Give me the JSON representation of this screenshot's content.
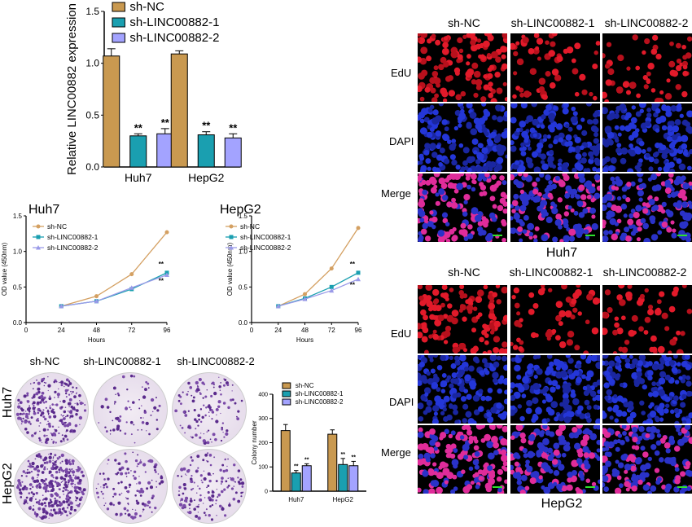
{
  "panel_a": {
    "chart_data": {
      "type": "bar",
      "ylabel": "Relative LINC00882 expression",
      "categories": [
        "Huh7",
        "HepG2"
      ],
      "ylim": [
        0,
        1.5
      ],
      "yticks": [
        "0.0",
        "0.5",
        "1.0",
        "1.5"
      ],
      "series": [
        {
          "name": "sh-NC",
          "values": [
            1.07,
            1.09
          ],
          "errors": [
            0.07,
            0.03
          ],
          "color": "#c99950",
          "sig": [
            "",
            ""
          ]
        },
        {
          "name": "sh-LINC00882-1",
          "values": [
            0.3,
            0.31
          ],
          "errors": [
            0.02,
            0.03
          ],
          "color": "#1a9fb0",
          "sig": [
            "**",
            "**"
          ]
        },
        {
          "name": "sh-LINC00882-2",
          "values": [
            0.32,
            0.28
          ],
          "errors": [
            0.05,
            0.04
          ],
          "color": "#a3a3ff",
          "sig": [
            "**",
            "**"
          ]
        }
      ],
      "legend": "top-left"
    }
  },
  "panel_b": {
    "chart_data": [
      {
        "type": "line",
        "title": "Huh7",
        "xlabel": "Hours",
        "ylabel": "OD value (450nm)",
        "x": [
          24,
          48,
          72,
          96
        ],
        "xlim": [
          0,
          96
        ],
        "ylim": [
          0,
          1.5
        ],
        "xticks": [
          "0",
          "24",
          "48",
          "72",
          "96"
        ],
        "yticks": [
          "0.0",
          "0.5",
          "1.0",
          "1.5"
        ],
        "series": [
          {
            "name": "sh-NC",
            "values": [
              0.23,
              0.37,
              0.68,
              1.27
            ],
            "color": "#d4a062",
            "marker": "circle",
            "sig": ""
          },
          {
            "name": "sh-LINC00882-1",
            "values": [
              0.23,
              0.3,
              0.47,
              0.7
            ],
            "color": "#1a9fb0",
            "marker": "square",
            "sig": "**"
          },
          {
            "name": "sh-LINC00882-2",
            "values": [
              0.23,
              0.3,
              0.49,
              0.67
            ],
            "color": "#9a9ae8",
            "marker": "triangle",
            "sig": "**"
          }
        ],
        "legend": "top-left"
      },
      {
        "type": "line",
        "title": "HepG2",
        "xlabel": "Hours",
        "ylabel": "OD value (450nm)",
        "x": [
          24,
          48,
          72,
          96
        ],
        "xlim": [
          0,
          96
        ],
        "ylim": [
          0,
          1.5
        ],
        "xticks": [
          "0",
          "24",
          "48",
          "72",
          "96"
        ],
        "yticks": [
          "0.0",
          "0.5",
          "1.0",
          "1.5"
        ],
        "series": [
          {
            "name": "sh-NC",
            "values": [
              0.23,
              0.4,
              0.76,
              1.33
            ],
            "color": "#d4a062",
            "marker": "circle",
            "sig": ""
          },
          {
            "name": "sh-LINC00882-1",
            "values": [
              0.23,
              0.34,
              0.5,
              0.7
            ],
            "color": "#1a9fb0",
            "marker": "square",
            "sig": "**"
          },
          {
            "name": "sh-LINC00882-2",
            "values": [
              0.23,
              0.33,
              0.45,
              0.61
            ],
            "color": "#9a9ae8",
            "marker": "triangle",
            "sig": "**"
          }
        ],
        "legend": "top-left"
      }
    ]
  },
  "panel_c": {
    "column_labels": [
      "sh-NC",
      "sh-LINC00882-1",
      "sh-LINC00882-2"
    ],
    "row_labels": [
      "Huh7",
      "HepG2"
    ],
    "chart_data": {
      "type": "bar",
      "ylabel": "Colony number",
      "categories": [
        "Huh7",
        "HepG2"
      ],
      "ylim": [
        0,
        400
      ],
      "yticks": [
        "0",
        "100",
        "200",
        "300",
        "400"
      ],
      "series": [
        {
          "name": "sh-NC",
          "values": [
            250,
            235
          ],
          "errors": [
            25,
            18
          ],
          "color": "#c99950",
          "sig": [
            "",
            ""
          ]
        },
        {
          "name": "sh-LINC00882-1",
          "values": [
            75,
            110
          ],
          "errors": [
            10,
            25
          ],
          "color": "#1a9fb0",
          "sig": [
            "**",
            "**"
          ]
        },
        {
          "name": "sh-LINC00882-2",
          "values": [
            105,
            105
          ],
          "errors": [
            8,
            18
          ],
          "color": "#a3a3ff",
          "sig": [
            "**",
            "**"
          ]
        }
      ],
      "legend": "top-left"
    }
  },
  "panel_d": {
    "column_labels": [
      "sh-NC",
      "sh-LINC00882-1",
      "sh-LINC00882-2"
    ],
    "row_labels": [
      "EdU",
      "DAPI",
      "Merge"
    ],
    "huh7_caption": "Huh7",
    "hepg2_caption": "HepG2"
  }
}
